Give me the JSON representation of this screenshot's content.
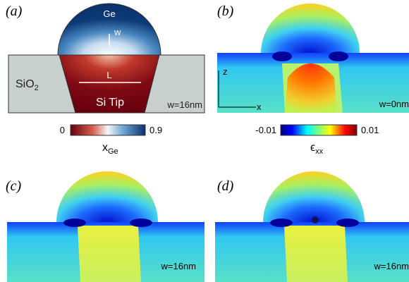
{
  "panels": [
    {
      "label": "(a)",
      "annotations": {
        "top": "Ge",
        "width": "w",
        "length": "L",
        "oxide": {
          "main": "SiO",
          "sub": "2"
        },
        "tip": "Si Tip",
        "note": "w=16nm"
      }
    },
    {
      "label": "(b)",
      "annotations": {
        "axis_z": "z",
        "axis_x": "x",
        "note": "w=0nm"
      }
    },
    {
      "label": "(c)",
      "annotations": {
        "note": "w=16nm"
      }
    },
    {
      "label": "(d)",
      "annotations": {
        "note": "w=16nm"
      }
    }
  ],
  "colorbars": [
    {
      "min_label": "0",
      "max_label": "0.9",
      "title": {
        "main": "x",
        "sub": "Ge"
      }
    },
    {
      "min_label": "-0.01",
      "max_label": "0.01",
      "title": {
        "main": "ϵ",
        "sub": "xx"
      }
    }
  ]
}
